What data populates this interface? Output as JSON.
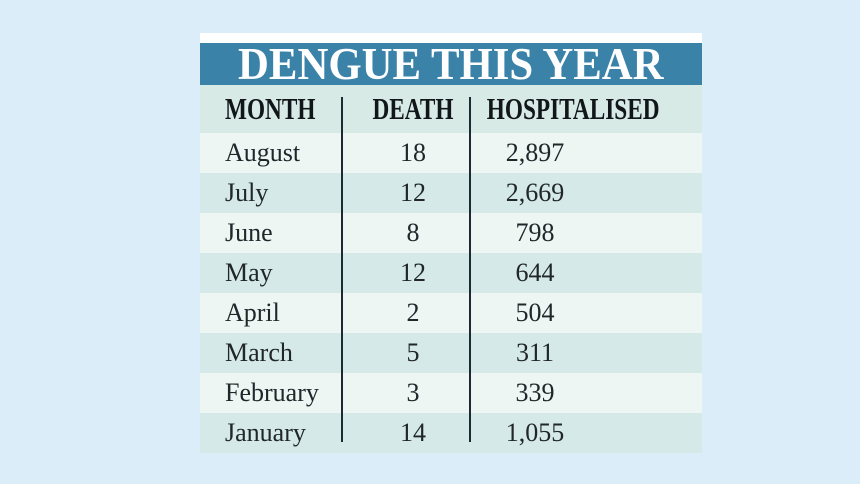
{
  "title": "DENGUE THIS YEAR",
  "table": {
    "columns": [
      "MONTH",
      "DEATH",
      "HOSPITALISED"
    ],
    "rows": [
      {
        "month": "August",
        "death": "18",
        "hospitalised": "2,897"
      },
      {
        "month": "July",
        "death": "12",
        "hospitalised": "2,669"
      },
      {
        "month": "June",
        "death": "8",
        "hospitalised": "798"
      },
      {
        "month": "May",
        "death": "12",
        "hospitalised": "644"
      },
      {
        "month": "April",
        "death": "2",
        "hospitalised": "504"
      },
      {
        "month": "March",
        "death": "5",
        "hospitalised": "311"
      },
      {
        "month": "February",
        "death": "3",
        "hospitalised": "339"
      },
      {
        "month": "January",
        "death": "14",
        "hospitalised": "1,055"
      }
    ]
  },
  "chart_data": {
    "type": "table",
    "title": "DENGUE THIS YEAR",
    "columns": [
      "MONTH",
      "DEATH",
      "HOSPITALISED"
    ],
    "categories": [
      "August",
      "July",
      "June",
      "May",
      "April",
      "March",
      "February",
      "January"
    ],
    "series": [
      {
        "name": "DEATH",
        "values": [
          18,
          12,
          8,
          12,
          2,
          5,
          3,
          14
        ]
      },
      {
        "name": "HOSPITALISED",
        "values": [
          2897,
          2669,
          798,
          644,
          504,
          311,
          339,
          1055
        ]
      }
    ]
  },
  "colors": {
    "page-bg": "#daedf8",
    "top-strip": "#ffffff",
    "banner-bg": "#3a82a8",
    "banner-text": "#ffffff",
    "header-row-bg": "#d8eae6",
    "header-text": "#10161a",
    "row-light-bg": "#edf6f3",
    "row-dark-bg": "#d5eae8",
    "text": "#20262a",
    "divider": "#1c2b33"
  }
}
